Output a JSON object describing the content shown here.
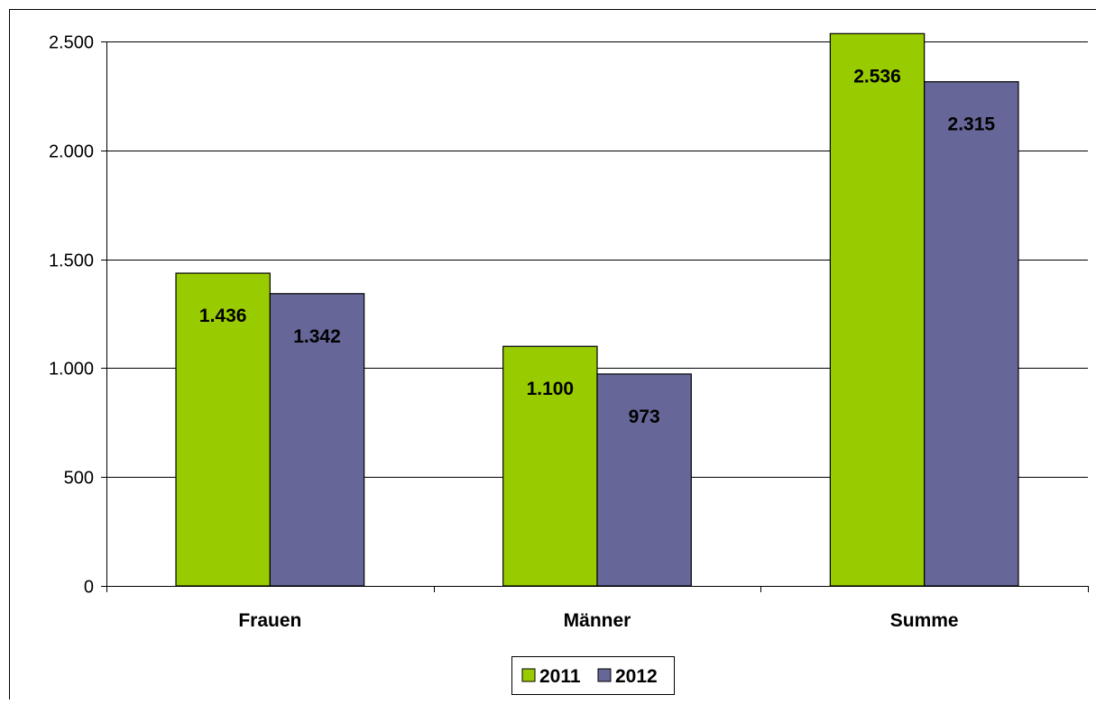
{
  "chart_data": {
    "type": "bar",
    "categories": [
      "Frauen",
      "Männer",
      "Summe"
    ],
    "series": [
      {
        "name": "2011",
        "values": [
          1436,
          1100,
          2536
        ],
        "labels": [
          "1.436",
          "1.100",
          "2.536"
        ],
        "color": "#99CC00"
      },
      {
        "name": "2012",
        "values": [
          1342,
          973,
          2315
        ],
        "labels": [
          "1.342",
          "973",
          "2.315"
        ],
        "color": "#666699"
      }
    ],
    "ylim": [
      0,
      2500
    ],
    "yticks": [
      0,
      500,
      1000,
      1500,
      2000,
      2500
    ],
    "ytick_labels": [
      "0",
      "500",
      "1.000",
      "1.500",
      "2.000",
      "2.500"
    ],
    "title": "",
    "xlabel": "",
    "ylabel": "",
    "grid": true,
    "legend_position": "bottom"
  }
}
